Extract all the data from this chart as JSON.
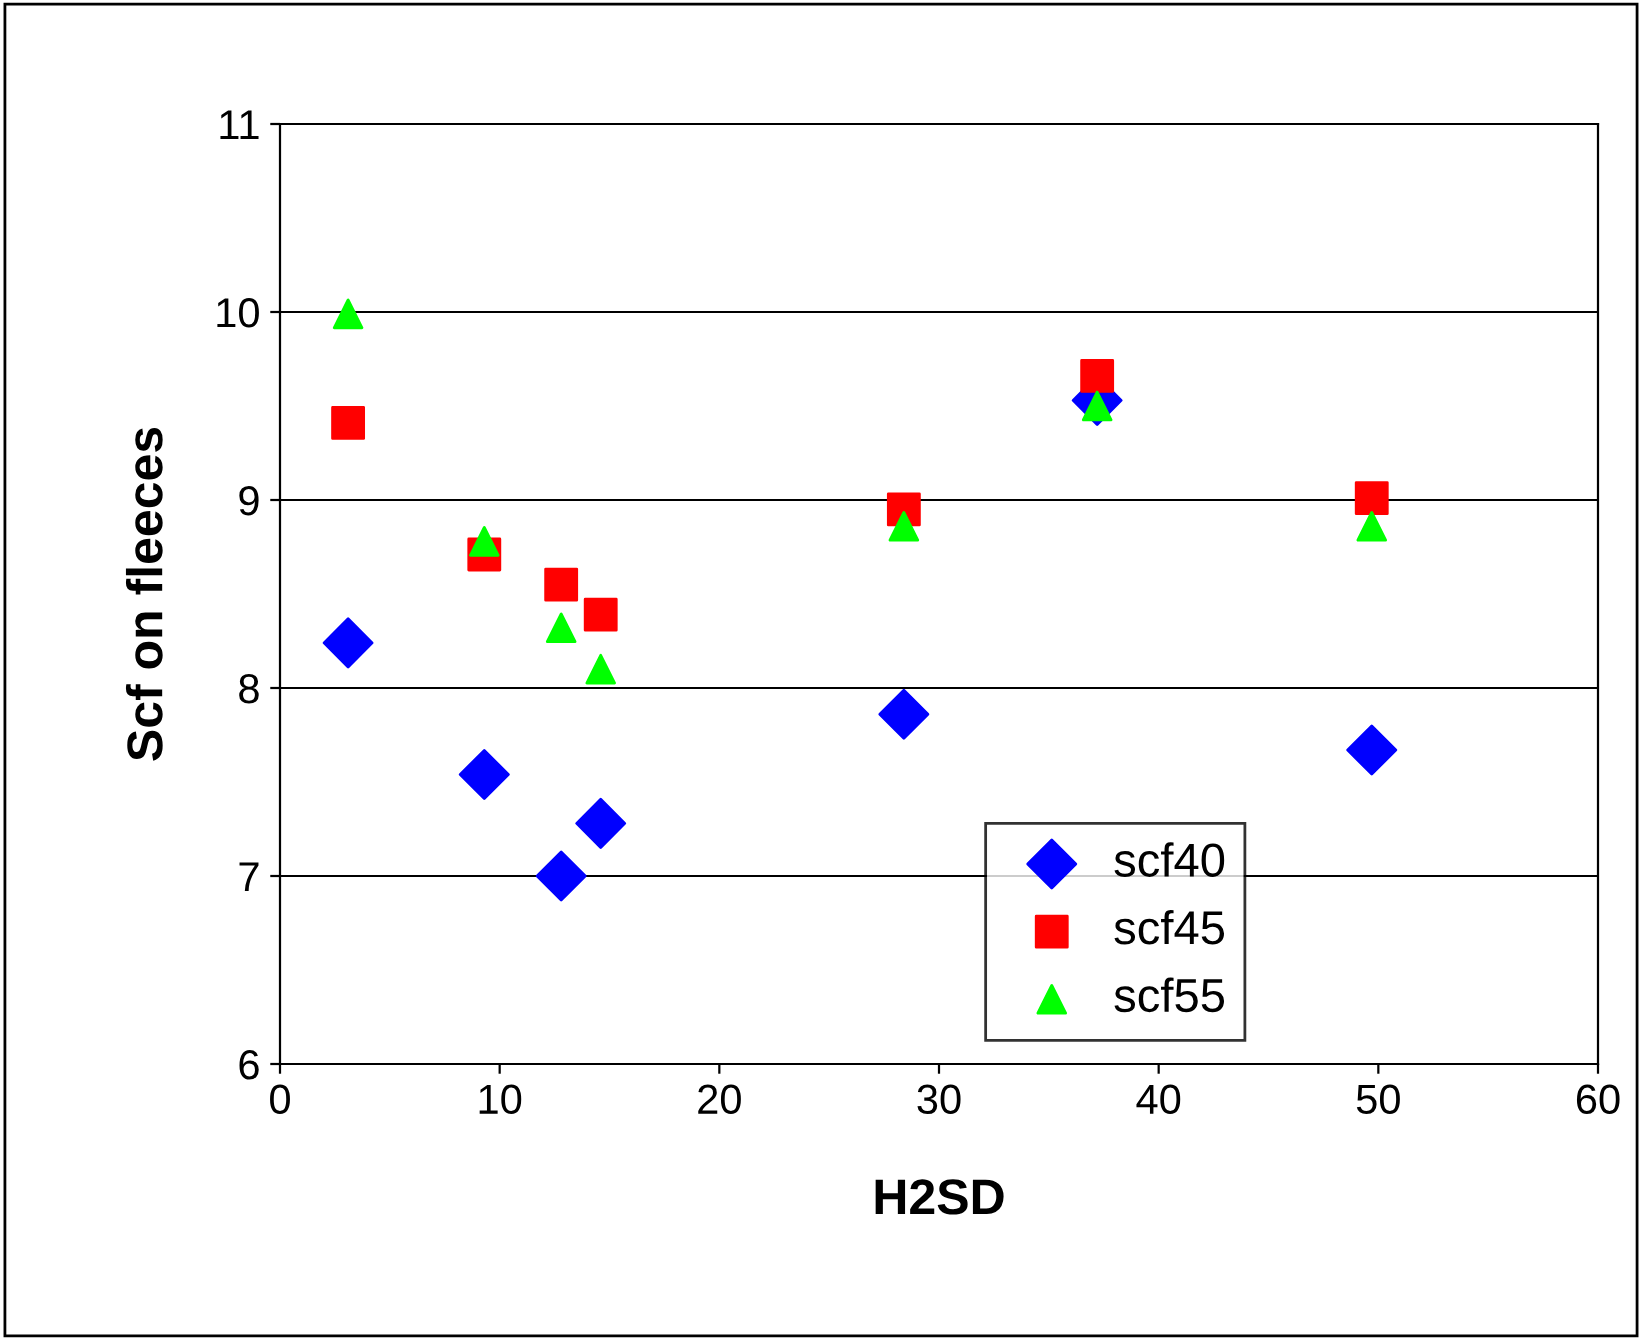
{
  "chart_data": {
    "type": "scatter",
    "xlabel": "H2SD",
    "ylabel": "Scf on fleeces",
    "xlim": [
      0,
      60
    ],
    "xticks": [
      0,
      10,
      20,
      30,
      40,
      50,
      60
    ],
    "ylim": [
      6,
      11
    ],
    "yticks": [
      6,
      7,
      8,
      9,
      10,
      11
    ],
    "grid": "y",
    "legend": "bottom right",
    "series": [
      {
        "name": "scf40",
        "color": "#0000ff",
        "marker": "diamond",
        "x": [
          3.1,
          9.3,
          12.8,
          14.6,
          28.4,
          37.2,
          49.7
        ],
        "values": [
          8.24,
          7.54,
          7.0,
          7.28,
          7.86,
          9.53,
          7.67
        ]
      },
      {
        "name": "scf45",
        "color": "#ff0000",
        "marker": "square",
        "x": [
          3.1,
          9.3,
          12.8,
          14.6,
          28.4,
          37.2,
          49.7
        ],
        "values": [
          9.41,
          8.71,
          8.55,
          8.39,
          8.95,
          9.66,
          9.01
        ]
      },
      {
        "name": "scf55",
        "color": "#00ff00",
        "marker": "triangle",
        "x": [
          3.1,
          9.3,
          12.8,
          14.6,
          28.4,
          37.2,
          49.7
        ],
        "values": [
          9.99,
          8.78,
          8.32,
          8.1,
          8.86,
          9.5,
          8.86
        ]
      }
    ]
  }
}
